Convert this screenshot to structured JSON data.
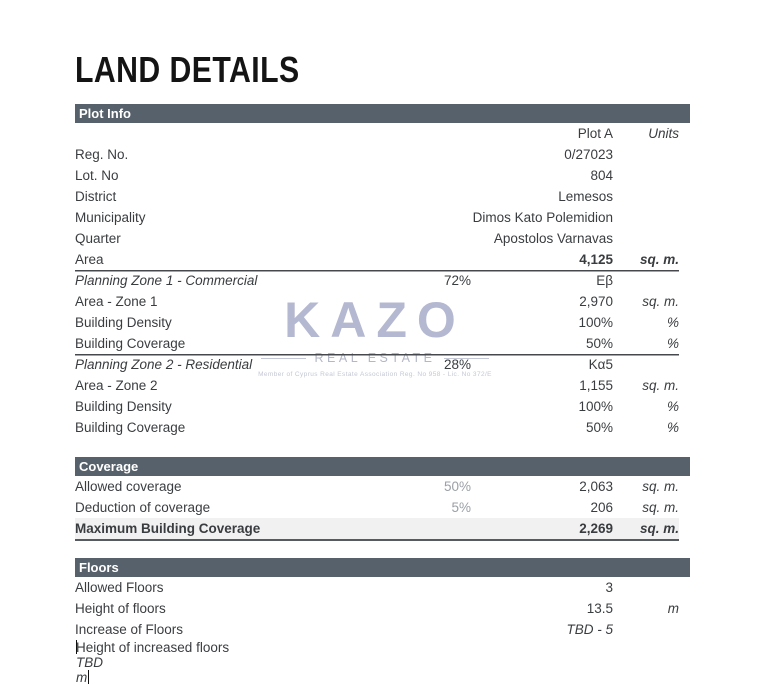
{
  "title": "LAND DETAILS",
  "watermark": {
    "logo": "KAZO",
    "subtitle": "REAL ESTATE",
    "fine_print": "Member of Cyprus Real Estate Association    Reg. No 958 - Lic. No 372/E"
  },
  "colors": {
    "section_bar": "#57616b",
    "bar_text": "#ffffff",
    "body_text": "#3a3d40",
    "muted_percent": "#9ba0a6",
    "watermark": "#b4b8d0",
    "highlight_row_bg": "#f1f1f1",
    "rule": "#45494e"
  },
  "sections": [
    {
      "name": "Plot Info",
      "rows": [
        {
          "label": "",
          "mid": "",
          "value": "Plot A",
          "units": "Units",
          "flags": [
            "column-header"
          ]
        },
        {
          "label": "Reg. No.",
          "mid": "",
          "value": "0/27023",
          "units": "",
          "flags": []
        },
        {
          "label": "Lot. No",
          "mid": "",
          "value": "804",
          "units": "",
          "flags": []
        },
        {
          "label": "District",
          "mid": "",
          "value": "Lemesos",
          "units": "",
          "flags": []
        },
        {
          "label": "Municipality",
          "mid": "",
          "value": "Dimos Kato Polemidion",
          "units": "",
          "flags": []
        },
        {
          "label": "Quarter",
          "mid": "",
          "value": "Apostolos Varnavas",
          "units": "",
          "flags": []
        },
        {
          "label": "Area",
          "mid": "",
          "value": "4,125",
          "units": "sq. m.",
          "flags": [
            "value-bold",
            "units-bold",
            "divider"
          ]
        },
        {
          "label": "Planning Zone 1 - Commercial",
          "mid": "72%",
          "value": "Eβ",
          "units": "",
          "flags": [
            "label-italic"
          ]
        },
        {
          "label": "Area - Zone 1",
          "mid": "",
          "value": "2,970",
          "units": "sq. m.",
          "flags": []
        },
        {
          "label": "Building Density",
          "mid": "",
          "value": "100%",
          "units": "%",
          "flags": []
        },
        {
          "label": "Building Coverage",
          "mid": "",
          "value": "50%",
          "units": "%",
          "flags": [
            "divider"
          ]
        },
        {
          "label": "Planning Zone 2 - Residential",
          "mid": "28%",
          "value": "Kα5",
          "units": "",
          "flags": [
            "label-italic"
          ]
        },
        {
          "label": "Area - Zone 2",
          "mid": "",
          "value": "1,155",
          "units": "sq. m.",
          "flags": []
        },
        {
          "label": "Building Density",
          "mid": "",
          "value": "100%",
          "units": "%",
          "flags": []
        },
        {
          "label": "Building Coverage",
          "mid": "",
          "value": "50%",
          "units": "%",
          "flags": []
        }
      ]
    },
    {
      "name": "Coverage",
      "rows": [
        {
          "label": "Allowed coverage",
          "mid": "50%",
          "value": "2,063",
          "units": "sq. m.",
          "flags": [
            "mid-muted"
          ]
        },
        {
          "label": "Deduction of coverage",
          "mid": "5%",
          "value": "206",
          "units": "sq. m.",
          "flags": [
            "mid-muted",
            "divider"
          ]
        },
        {
          "label": "Maximum Building Coverage",
          "mid": "",
          "value": "2,269",
          "units": "sq. m.",
          "flags": [
            "label-bold",
            "value-bold",
            "units-bold",
            "highlight"
          ]
        }
      ]
    },
    {
      "name": "Floors",
      "rows": [
        {
          "label": "Allowed Floors",
          "mid": "",
          "value": "3",
          "units": "",
          "flags": []
        },
        {
          "label": "Height of floors",
          "mid": "",
          "value": "13.5",
          "units": "m",
          "flags": []
        },
        {
          "label": "Increase of Floors",
          "mid": "",
          "value": "TBD - 5",
          "units": "",
          "flags": [
            "value-italic"
          ]
        },
        {
          "label": "Height of increased floors",
          "mid": "",
          "value": "TBD",
          "units": "m",
          "flags": [
            "value-italic",
            "caret"
          ]
        }
      ]
    }
  ]
}
